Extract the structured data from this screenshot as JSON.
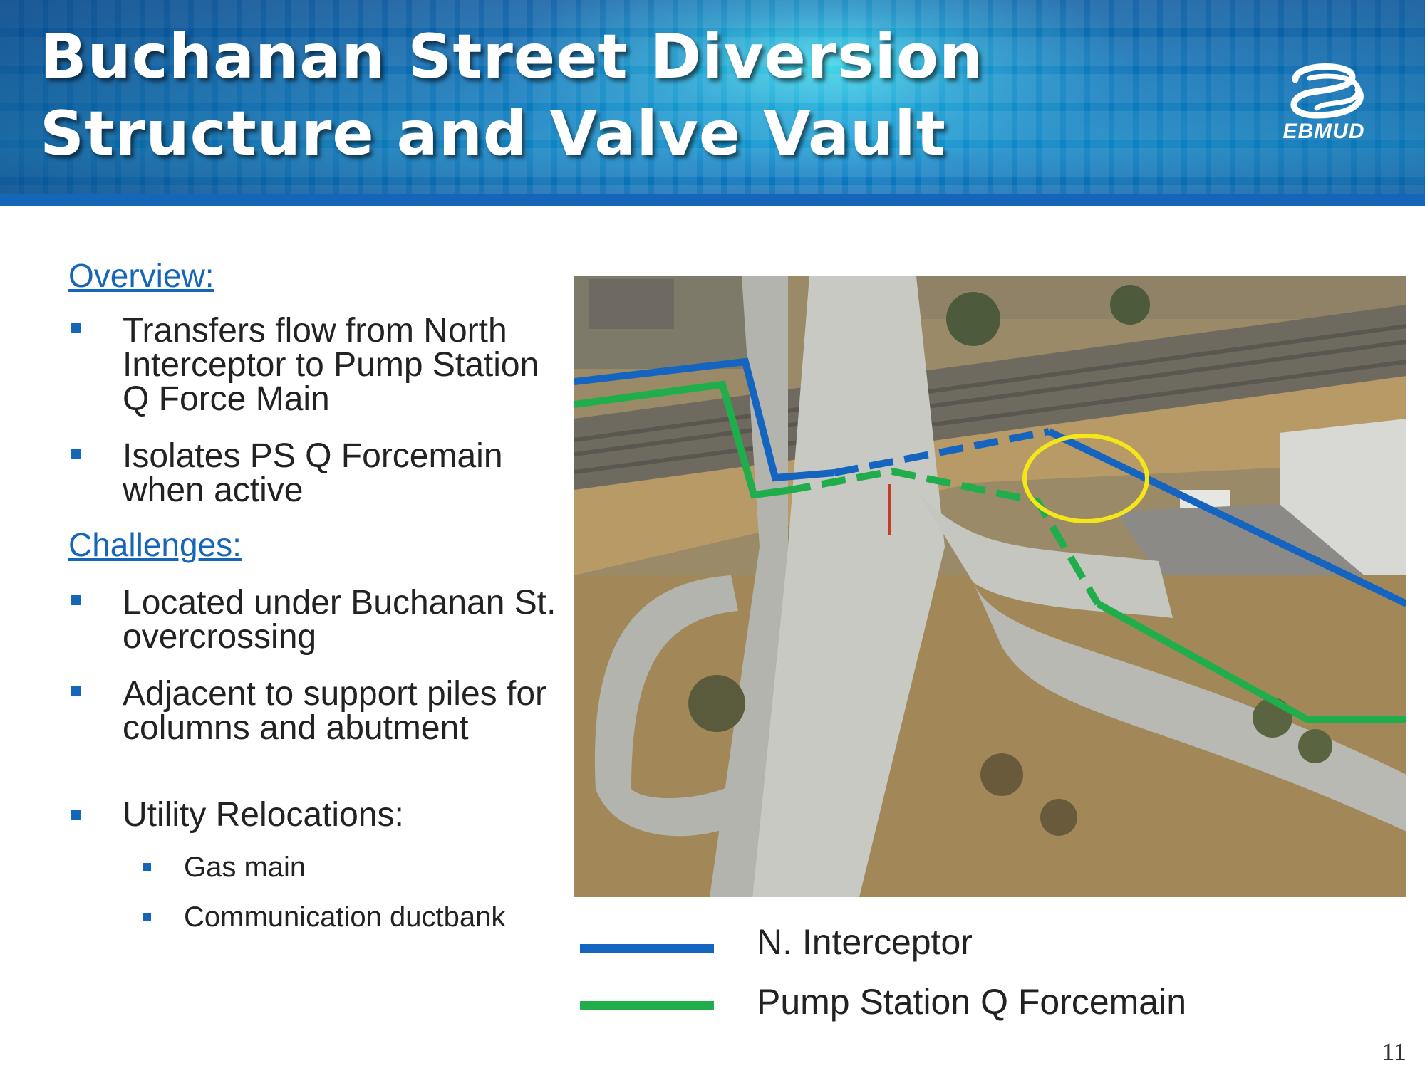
{
  "slide": {
    "title_line1": "Buchanan Street Diversion",
    "title_line2": "Structure and Valve Vault",
    "logo_text": "EBMUD",
    "page_number": "11"
  },
  "overview": {
    "heading": "Overview:",
    "items": [
      "Transfers flow from North Interceptor to Pump Station Q Force Main",
      "Isolates PS Q Forcemain when active"
    ]
  },
  "challenges": {
    "heading": "Challenges:",
    "items": [
      "Located under Buchanan St. overcrossing",
      "Adjacent to support piles for columns and abutment",
      "Utility Relocations:"
    ],
    "sub_items": [
      "Gas main",
      "Communication ductbank"
    ]
  },
  "legend": {
    "items": [
      {
        "label": "N. Interceptor",
        "color": "#1565c0"
      },
      {
        "label": "Pump Station Q Forcemain",
        "color": "#1fae4b"
      }
    ]
  },
  "colors": {
    "accent": "#1565b8",
    "interceptor_line": "#1565c0",
    "forcemain_line": "#1fae4b",
    "highlight_circle": "#f5e61a"
  }
}
